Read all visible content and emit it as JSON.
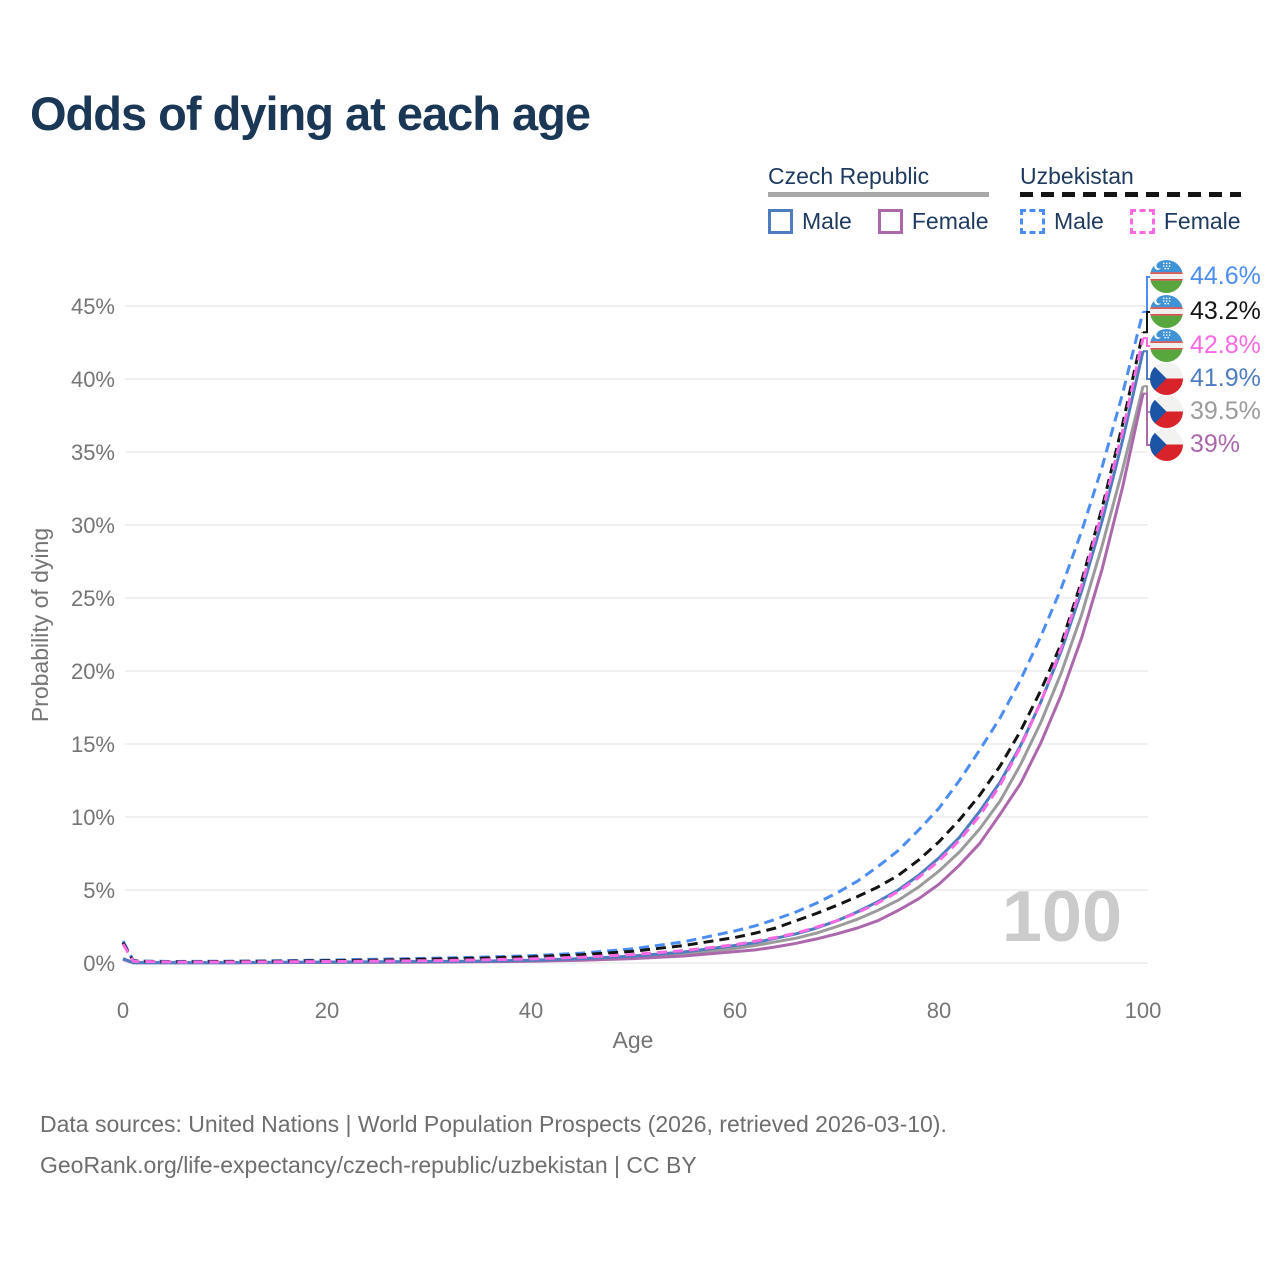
{
  "title": "Odds of dying at each age",
  "watermark": "100",
  "legend": {
    "groups": [
      {
        "label": "Czech Republic",
        "line_style": "solid",
        "line_color": "#a8a8a8",
        "items": [
          {
            "label": "Male",
            "color": "#4d7dbf",
            "style": "solid"
          },
          {
            "label": "Female",
            "color": "#ab68ab",
            "style": "solid"
          }
        ]
      },
      {
        "label": "Uzbekistan",
        "line_style": "dashed",
        "line_color": "#141414",
        "items": [
          {
            "label": "Male",
            "color": "#4c8df2",
            "style": "dashed"
          },
          {
            "label": "Female",
            "color": "#f969e3",
            "style": "dashed"
          }
        ]
      }
    ]
  },
  "chart_data": {
    "type": "line",
    "title": "Odds of dying at each age",
    "xlabel": "Age",
    "ylabel": "Probability of dying",
    "x_ticks": [
      0,
      20,
      40,
      60,
      80,
      100
    ],
    "y_ticks": [
      0,
      5,
      10,
      15,
      20,
      25,
      30,
      35,
      40,
      45
    ],
    "y_tick_suffix": "%",
    "xlim": [
      0,
      100
    ],
    "ylim": [
      0,
      47
    ],
    "grid": "horizontal",
    "legend_position": "top-right",
    "ages": [
      0,
      1,
      2,
      5,
      10,
      15,
      20,
      25,
      30,
      35,
      40,
      45,
      50,
      55,
      60,
      62,
      64,
      66,
      68,
      70,
      72,
      74,
      76,
      78,
      80,
      82,
      84,
      86,
      88,
      90,
      92,
      94,
      96,
      98,
      100
    ],
    "series": [
      {
        "country": "Uzbekistan",
        "sex": "Male",
        "flag": "uz",
        "color": "#4c8df2",
        "dashed": true,
        "end_label": "44.6%",
        "values": [
          1.5,
          0.18,
          0.13,
          0.1,
          0.12,
          0.15,
          0.2,
          0.26,
          0.32,
          0.4,
          0.5,
          0.68,
          0.97,
          1.45,
          2.2,
          2.55,
          3.0,
          3.5,
          4.1,
          4.8,
          5.6,
          6.6,
          7.7,
          9.1,
          10.6,
          12.5,
          14.6,
          16.8,
          19.4,
          22.4,
          25.7,
          29.6,
          34.0,
          39.0,
          44.6
        ]
      },
      {
        "country": "Uzbekistan",
        "sex": "Both",
        "flag": "uz",
        "color": "#141414",
        "dashed": true,
        "end_label": "43.2%",
        "values": [
          1.4,
          0.15,
          0.11,
          0.08,
          0.1,
          0.12,
          0.16,
          0.2,
          0.26,
          0.33,
          0.42,
          0.57,
          0.8,
          1.2,
          1.75,
          2.05,
          2.4,
          2.9,
          3.4,
          3.95,
          4.55,
          5.2,
          6.0,
          7.05,
          8.3,
          9.8,
          11.5,
          13.5,
          15.9,
          18.7,
          21.9,
          26.2,
          31.2,
          36.9,
          43.2
        ]
      },
      {
        "country": "Uzbekistan",
        "sex": "Female",
        "flag": "uz",
        "color": "#f969e3",
        "dashed": true,
        "end_label": "42.8%",
        "values": [
          1.3,
          0.13,
          0.1,
          0.06,
          0.07,
          0.08,
          0.1,
          0.13,
          0.16,
          0.21,
          0.28,
          0.4,
          0.58,
          0.85,
          1.25,
          1.5,
          1.75,
          2.05,
          2.45,
          2.9,
          3.45,
          4.1,
          4.9,
          5.85,
          7.0,
          8.4,
          10.1,
          12.2,
          14.8,
          17.9,
          21.6,
          25.9,
          30.9,
          36.4,
          42.8
        ]
      },
      {
        "country": "Czech Republic",
        "sex": "Male",
        "flag": "cz",
        "color": "#4d7dbf",
        "dashed": false,
        "end_label": "41.9%",
        "values": [
          0.3,
          0.03,
          0.02,
          0.015,
          0.02,
          0.045,
          0.065,
          0.08,
          0.1,
          0.13,
          0.19,
          0.3,
          0.47,
          0.75,
          1.2,
          1.4,
          1.7,
          2.0,
          2.4,
          2.9,
          3.5,
          4.2,
          5.0,
          6.0,
          7.2,
          8.6,
          10.4,
          12.4,
          14.9,
          17.9,
          21.4,
          25.5,
          30.3,
          35.8,
          41.9
        ]
      },
      {
        "country": "Czech Republic",
        "sex": "Both",
        "flag": "cz",
        "color": "#9b9b9b",
        "dashed": false,
        "end_label": "39.5%",
        "values": [
          0.28,
          0.025,
          0.018,
          0.013,
          0.018,
          0.035,
          0.055,
          0.065,
          0.08,
          0.11,
          0.16,
          0.25,
          0.39,
          0.62,
          1.0,
          1.2,
          1.45,
          1.7,
          2.05,
          2.5,
          3.0,
          3.6,
          4.3,
          5.2,
          6.3,
          7.6,
          9.2,
          11.1,
          13.6,
          16.5,
          19.9,
          23.9,
          28.6,
          33.8,
          39.5
        ]
      },
      {
        "country": "Czech Republic",
        "sex": "Female",
        "flag": "cz",
        "color": "#ab68ab",
        "dashed": false,
        "end_label": "39%",
        "values": [
          0.25,
          0.02,
          0.015,
          0.012,
          0.015,
          0.03,
          0.04,
          0.05,
          0.06,
          0.08,
          0.12,
          0.19,
          0.3,
          0.48,
          0.78,
          0.9,
          1.1,
          1.35,
          1.65,
          2.0,
          2.4,
          2.9,
          3.6,
          4.4,
          5.4,
          6.7,
          8.2,
          10.2,
          12.3,
          15.1,
          18.4,
          22.3,
          27.0,
          32.6,
          39.0
        ]
      }
    ]
  },
  "footer": {
    "line1": "Data sources: United Nations | World Population Prospects (2026, retrieved 2026-03-10).",
    "line2": "GeoRank.org/life-expectancy/czech-republic/uzbekistan | CC BY"
  }
}
